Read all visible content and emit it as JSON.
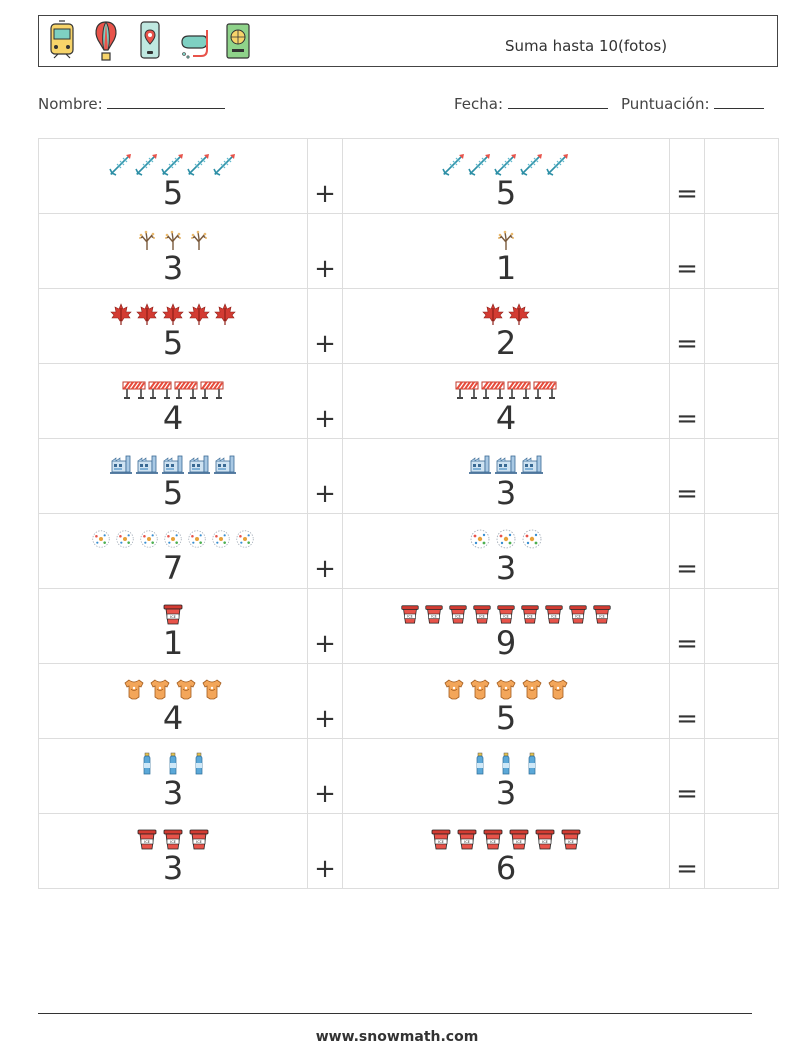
{
  "header": {
    "title": "Suma hasta 10(fotos)",
    "icons": [
      "tram-icon",
      "hot-air-balloon-icon",
      "phone-map-pin-icon",
      "snorkel-mask-icon",
      "passport-icon"
    ]
  },
  "fields": {
    "name_label": "Nombre:",
    "date_label": "Fecha:",
    "score_label": "Puntuación:"
  },
  "symbols": {
    "plus": "+",
    "equals": "="
  },
  "rows": [
    {
      "a": "5",
      "b": "5",
      "icon": "fish-skeleton-icon"
    },
    {
      "a": "3",
      "b": "1",
      "icon": "bare-branch-icon"
    },
    {
      "a": "5",
      "b": "2",
      "icon": "maple-leaf-icon"
    },
    {
      "a": "4",
      "b": "4",
      "icon": "road-barrier-icon"
    },
    {
      "a": "5",
      "b": "3",
      "icon": "factory-icon"
    },
    {
      "a": "7",
      "b": "3",
      "icon": "virus-cell-icon"
    },
    {
      "a": "1",
      "b": "9",
      "icon": "coffee-cup-icon"
    },
    {
      "a": "4",
      "b": "5",
      "icon": "baby-onesie-icon"
    },
    {
      "a": "3",
      "b": "3",
      "icon": "water-bottle-icon"
    },
    {
      "a": "3",
      "b": "6",
      "icon": "coffee-cup-icon"
    }
  ],
  "footer": {
    "url": "www.snowmath.com"
  }
}
